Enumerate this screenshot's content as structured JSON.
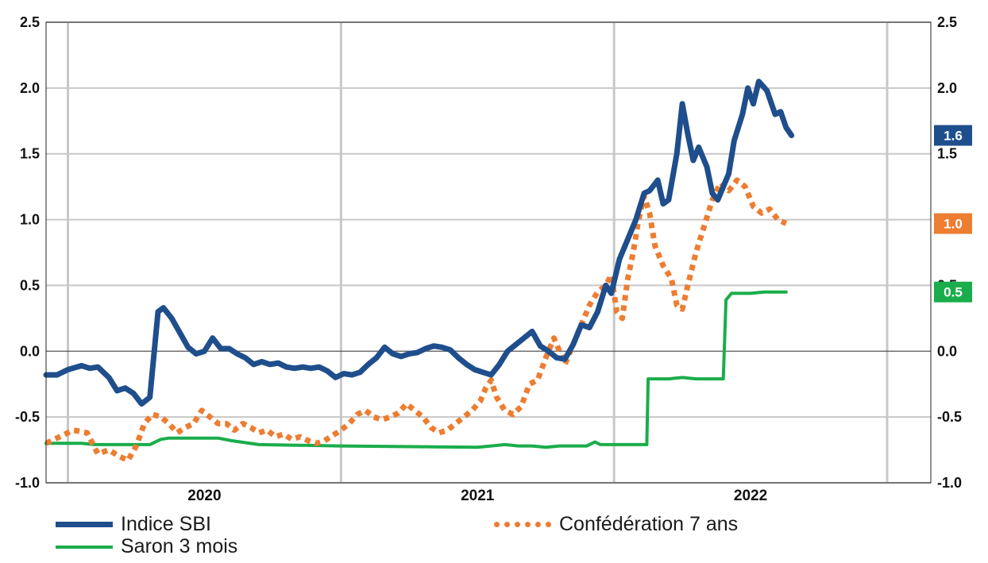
{
  "chart_data": {
    "type": "line",
    "x_ticks": [
      "2020",
      "2021",
      "2022"
    ],
    "y_ticks": [
      "2.5",
      "2.0",
      "1.5",
      "1.0",
      "0.5",
      "0.0",
      "-0.5",
      "-1.0"
    ],
    "ylim": [
      -1.0,
      2.5
    ],
    "x_range": [
      2019.42,
      2022.66
    ],
    "grid": true,
    "legend_position": "bottom",
    "series": [
      {
        "name": "Indice SBI",
        "color": "#1f4e8c",
        "style": "solid-thick",
        "end_label": "1.6",
        "points": [
          [
            2019.42,
            -0.18
          ],
          [
            2019.46,
            -0.18
          ],
          [
            2019.5,
            -0.14
          ],
          [
            2019.55,
            -0.11
          ],
          [
            2019.58,
            -0.13
          ],
          [
            2019.61,
            -0.12
          ],
          [
            2019.65,
            -0.2
          ],
          [
            2019.68,
            -0.3
          ],
          [
            2019.71,
            -0.28
          ],
          [
            2019.74,
            -0.32
          ],
          [
            2019.77,
            -0.4
          ],
          [
            2019.8,
            -0.35
          ],
          [
            2019.83,
            0.3
          ],
          [
            2019.85,
            0.33
          ],
          [
            2019.88,
            0.25
          ],
          [
            2019.91,
            0.14
          ],
          [
            2019.94,
            0.03
          ],
          [
            2019.97,
            -0.02
          ],
          [
            2020.0,
            0.0
          ],
          [
            2020.03,
            0.1
          ],
          [
            2020.06,
            0.02
          ],
          [
            2020.09,
            0.02
          ],
          [
            2020.12,
            -0.02
          ],
          [
            2020.15,
            -0.05
          ],
          [
            2020.18,
            -0.1
          ],
          [
            2020.21,
            -0.08
          ],
          [
            2020.24,
            -0.1
          ],
          [
            2020.27,
            -0.09
          ],
          [
            2020.3,
            -0.12
          ],
          [
            2020.33,
            -0.13
          ],
          [
            2020.36,
            -0.12
          ],
          [
            2020.39,
            -0.13
          ],
          [
            2020.42,
            -0.12
          ],
          [
            2020.45,
            -0.15
          ],
          [
            2020.48,
            -0.2
          ],
          [
            2020.51,
            -0.17
          ],
          [
            2020.54,
            -0.18
          ],
          [
            2020.57,
            -0.16
          ],
          [
            2020.6,
            -0.1
          ],
          [
            2020.63,
            -0.05
          ],
          [
            2020.66,
            0.03
          ],
          [
            2020.69,
            -0.02
          ],
          [
            2020.72,
            -0.04
          ],
          [
            2020.75,
            -0.02
          ],
          [
            2020.78,
            -0.01
          ],
          [
            2020.81,
            0.02
          ],
          [
            2020.84,
            0.04
          ],
          [
            2020.87,
            0.03
          ],
          [
            2020.9,
            0.01
          ],
          [
            2020.93,
            -0.05
          ],
          [
            2020.96,
            -0.1
          ],
          [
            2020.99,
            -0.14
          ],
          [
            2021.02,
            -0.16
          ],
          [
            2021.05,
            -0.18
          ],
          [
            2021.08,
            -0.1
          ],
          [
            2021.11,
            0.0
          ],
          [
            2021.14,
            0.05
          ],
          [
            2021.17,
            0.1
          ],
          [
            2021.2,
            0.15
          ],
          [
            2021.23,
            0.04
          ],
          [
            2021.26,
            0.0
          ],
          [
            2021.29,
            -0.05
          ],
          [
            2021.32,
            -0.06
          ],
          [
            2021.35,
            0.05
          ],
          [
            2021.38,
            0.2
          ],
          [
            2021.41,
            0.18
          ],
          [
            2021.44,
            0.3
          ],
          [
            2021.47,
            0.5
          ],
          [
            2021.49,
            0.44
          ],
          [
            2021.52,
            0.7
          ],
          [
            2021.55,
            0.85
          ],
          [
            2021.58,
            1.0
          ],
          [
            2021.61,
            1.2
          ],
          [
            2021.63,
            1.22
          ],
          [
            2021.66,
            1.3
          ],
          [
            2021.68,
            1.12
          ],
          [
            2021.7,
            1.15
          ],
          [
            2021.73,
            1.5
          ],
          [
            2021.75,
            1.88
          ],
          [
            2021.77,
            1.65
          ],
          [
            2021.79,
            1.45
          ],
          [
            2021.81,
            1.55
          ],
          [
            2021.84,
            1.4
          ],
          [
            2021.86,
            1.2
          ],
          [
            2021.88,
            1.15
          ],
          [
            2021.9,
            1.25
          ],
          [
            2021.92,
            1.35
          ],
          [
            2021.94,
            1.6
          ],
          [
            2021.97,
            1.8
          ],
          [
            2021.99,
            2.0
          ],
          [
            2022.01,
            1.88
          ],
          [
            2022.03,
            2.05
          ],
          [
            2022.06,
            1.98
          ],
          [
            2022.09,
            1.8
          ],
          [
            2022.11,
            1.82
          ],
          [
            2022.13,
            1.7
          ],
          [
            2022.15,
            1.64
          ]
        ]
      },
      {
        "name": "Confédération 7 ans",
        "color": "#ed7d31",
        "style": "dotted",
        "end_label": "1.0",
        "points": [
          [
            2019.42,
            -0.7
          ],
          [
            2019.47,
            -0.65
          ],
          [
            2019.52,
            -0.6
          ],
          [
            2019.57,
            -0.62
          ],
          [
            2019.61,
            -0.78
          ],
          [
            2019.65,
            -0.75
          ],
          [
            2019.69,
            -0.8
          ],
          [
            2019.72,
            -0.83
          ],
          [
            2019.75,
            -0.72
          ],
          [
            2019.78,
            -0.55
          ],
          [
            2019.81,
            -0.48
          ],
          [
            2019.84,
            -0.5
          ],
          [
            2019.87,
            -0.55
          ],
          [
            2019.9,
            -0.62
          ],
          [
            2019.93,
            -0.58
          ],
          [
            2019.96,
            -0.55
          ],
          [
            2019.99,
            -0.45
          ],
          [
            2020.02,
            -0.5
          ],
          [
            2020.05,
            -0.55
          ],
          [
            2020.08,
            -0.55
          ],
          [
            2020.11,
            -0.6
          ],
          [
            2020.14,
            -0.55
          ],
          [
            2020.17,
            -0.58
          ],
          [
            2020.2,
            -0.62
          ],
          [
            2020.23,
            -0.6
          ],
          [
            2020.26,
            -0.65
          ],
          [
            2020.29,
            -0.63
          ],
          [
            2020.32,
            -0.67
          ],
          [
            2020.35,
            -0.65
          ],
          [
            2020.38,
            -0.68
          ],
          [
            2020.41,
            -0.7
          ],
          [
            2020.44,
            -0.68
          ],
          [
            2020.47,
            -0.64
          ],
          [
            2020.5,
            -0.6
          ],
          [
            2020.53,
            -0.55
          ],
          [
            2020.56,
            -0.48
          ],
          [
            2020.59,
            -0.45
          ],
          [
            2020.62,
            -0.5
          ],
          [
            2020.65,
            -0.52
          ],
          [
            2020.68,
            -0.5
          ],
          [
            2020.71,
            -0.47
          ],
          [
            2020.74,
            -0.4
          ],
          [
            2020.77,
            -0.45
          ],
          [
            2020.8,
            -0.5
          ],
          [
            2020.83,
            -0.58
          ],
          [
            2020.86,
            -0.62
          ],
          [
            2020.89,
            -0.6
          ],
          [
            2020.92,
            -0.55
          ],
          [
            2020.95,
            -0.5
          ],
          [
            2020.98,
            -0.45
          ],
          [
            2021.01,
            -0.38
          ],
          [
            2021.03,
            -0.28
          ],
          [
            2021.05,
            -0.22
          ],
          [
            2021.07,
            -0.35
          ],
          [
            2021.1,
            -0.45
          ],
          [
            2021.13,
            -0.48
          ],
          [
            2021.16,
            -0.42
          ],
          [
            2021.19,
            -0.25
          ],
          [
            2021.22,
            -0.22
          ],
          [
            2021.25,
            -0.05
          ],
          [
            2021.28,
            0.1
          ],
          [
            2021.3,
            0.0
          ],
          [
            2021.32,
            -0.1
          ],
          [
            2021.35,
            0.05
          ],
          [
            2021.38,
            0.2
          ],
          [
            2021.41,
            0.35
          ],
          [
            2021.44,
            0.45
          ],
          [
            2021.47,
            0.5
          ],
          [
            2021.49,
            0.58
          ],
          [
            2021.51,
            0.3
          ],
          [
            2021.53,
            0.25
          ],
          [
            2021.55,
            0.55
          ],
          [
            2021.57,
            0.75
          ],
          [
            2021.59,
            1.0
          ],
          [
            2021.61,
            1.18
          ],
          [
            2021.63,
            1.05
          ],
          [
            2021.65,
            0.8
          ],
          [
            2021.68,
            0.65
          ],
          [
            2021.71,
            0.55
          ],
          [
            2021.73,
            0.35
          ],
          [
            2021.75,
            0.32
          ],
          [
            2021.77,
            0.5
          ],
          [
            2021.8,
            0.75
          ],
          [
            2021.83,
            0.95
          ],
          [
            2021.86,
            1.15
          ],
          [
            2021.89,
            1.28
          ],
          [
            2021.92,
            1.22
          ],
          [
            2021.95,
            1.3
          ],
          [
            2021.98,
            1.25
          ],
          [
            2022.01,
            1.1
          ],
          [
            2022.04,
            1.05
          ],
          [
            2022.07,
            1.08
          ],
          [
            2022.1,
            1.0
          ],
          [
            2022.13,
            0.97
          ]
        ]
      },
      {
        "name": "Saron 3 mois",
        "color": "#1aad4b",
        "style": "solid",
        "end_label": "0.5",
        "points": [
          [
            2019.42,
            -0.7
          ],
          [
            2019.55,
            -0.7
          ],
          [
            2019.6,
            -0.71
          ],
          [
            2019.7,
            -0.71
          ],
          [
            2019.8,
            -0.71
          ],
          [
            2019.84,
            -0.67
          ],
          [
            2019.87,
            -0.66
          ],
          [
            2020.05,
            -0.66
          ],
          [
            2020.1,
            -0.68
          ],
          [
            2020.2,
            -0.71
          ],
          [
            2020.5,
            -0.72
          ],
          [
            2021.0,
            -0.73
          ],
          [
            2021.05,
            -0.72
          ],
          [
            2021.1,
            -0.71
          ],
          [
            2021.15,
            -0.72
          ],
          [
            2021.2,
            -0.72
          ],
          [
            2021.25,
            -0.73
          ],
          [
            2021.3,
            -0.72
          ],
          [
            2021.35,
            -0.72
          ],
          [
            2021.4,
            -0.72
          ],
          [
            2021.43,
            -0.69
          ],
          [
            2021.45,
            -0.71
          ],
          [
            2021.5,
            -0.71
          ],
          [
            2021.62,
            -0.71
          ],
          [
            2021.625,
            -0.21
          ],
          [
            2021.65,
            -0.21
          ],
          [
            2021.7,
            -0.21
          ],
          [
            2021.75,
            -0.2
          ],
          [
            2021.8,
            -0.21
          ],
          [
            2021.85,
            -0.21
          ],
          [
            2021.9,
            -0.21
          ],
          [
            2021.91,
            0.39
          ],
          [
            2021.93,
            0.44
          ],
          [
            2021.95,
            0.44
          ],
          [
            2022.0,
            0.44
          ],
          [
            2022.05,
            0.45
          ],
          [
            2022.1,
            0.45
          ],
          [
            2022.13,
            0.45
          ]
        ]
      }
    ]
  },
  "legend": {
    "items": [
      {
        "label": "Indice SBI"
      },
      {
        "label": "Confédération 7 ans"
      },
      {
        "label": "Saron 3 mois"
      }
    ]
  }
}
